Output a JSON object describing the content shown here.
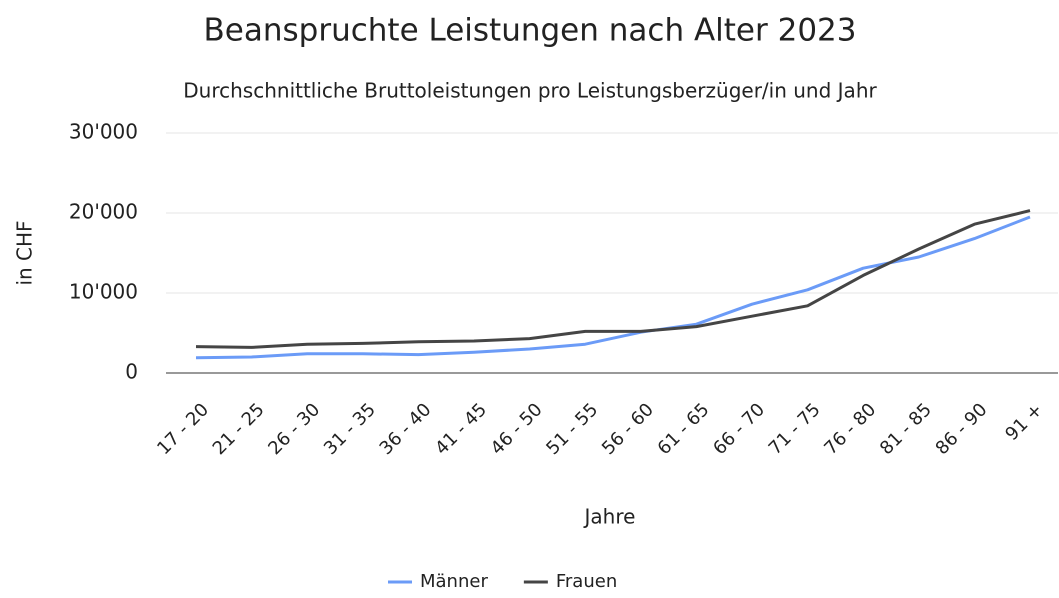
{
  "chart_data": {
    "type": "line",
    "title": "Beanspruchte Leistungen nach Alter 2023",
    "subtitle": "Durchschnittliche Bruttoleistungen pro Leistungsberzüger/in und Jahr",
    "xlabel": "Jahre",
    "ylabel": "in CHF",
    "categories": [
      "17 - 20",
      "21 - 25",
      "26 - 30",
      "31 - 35",
      "36 - 40",
      "41 - 45",
      "46 - 50",
      "51 - 55",
      "56 - 60",
      "61 - 65",
      "66 - 70",
      "71 - 75",
      "76 - 80",
      "81 - 85",
      "86 - 90",
      "91 +"
    ],
    "series": [
      {
        "name": "Männer",
        "color": "#6b9bf7",
        "values": [
          1900,
          2000,
          2400,
          2400,
          2300,
          2600,
          3000,
          3600,
          5100,
          6100,
          8600,
          10400,
          13100,
          14500,
          16800,
          19500
        ]
      },
      {
        "name": "Frauen",
        "color": "#454545",
        "values": [
          3300,
          3200,
          3600,
          3700,
          3900,
          4000,
          4300,
          5200,
          5200,
          5800,
          7100,
          8400,
          12200,
          15500,
          18600,
          20300
        ]
      }
    ],
    "ylim": [
      0,
      30000
    ],
    "yticks": [
      0,
      {
        "value": 10000,
        "label": "10'000"
      },
      {
        "value": 20000,
        "label": "20'000"
      },
      {
        "value": 30000,
        "label": "30'000"
      }
    ],
    "grid": true,
    "legend": "bottom"
  }
}
